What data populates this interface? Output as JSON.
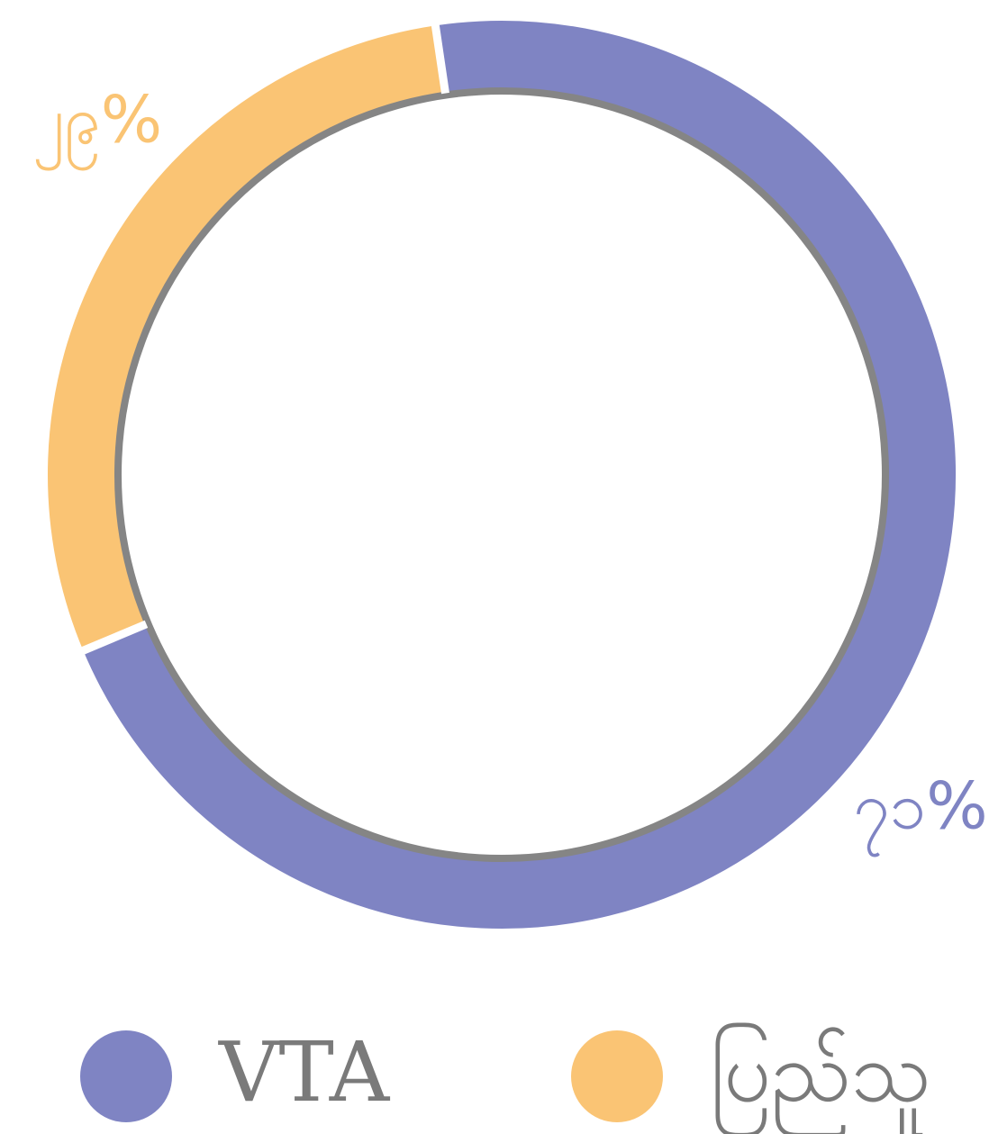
{
  "chart_data": {
    "type": "donut",
    "categories": [
      "VTA",
      "ပြည်သူ"
    ],
    "values": [
      71,
      29
    ],
    "value_labels": [
      "၇၁%",
      "၂၉%"
    ],
    "colors": [
      "#7f84c3",
      "#fac474"
    ],
    "legend": "bottom"
  }
}
